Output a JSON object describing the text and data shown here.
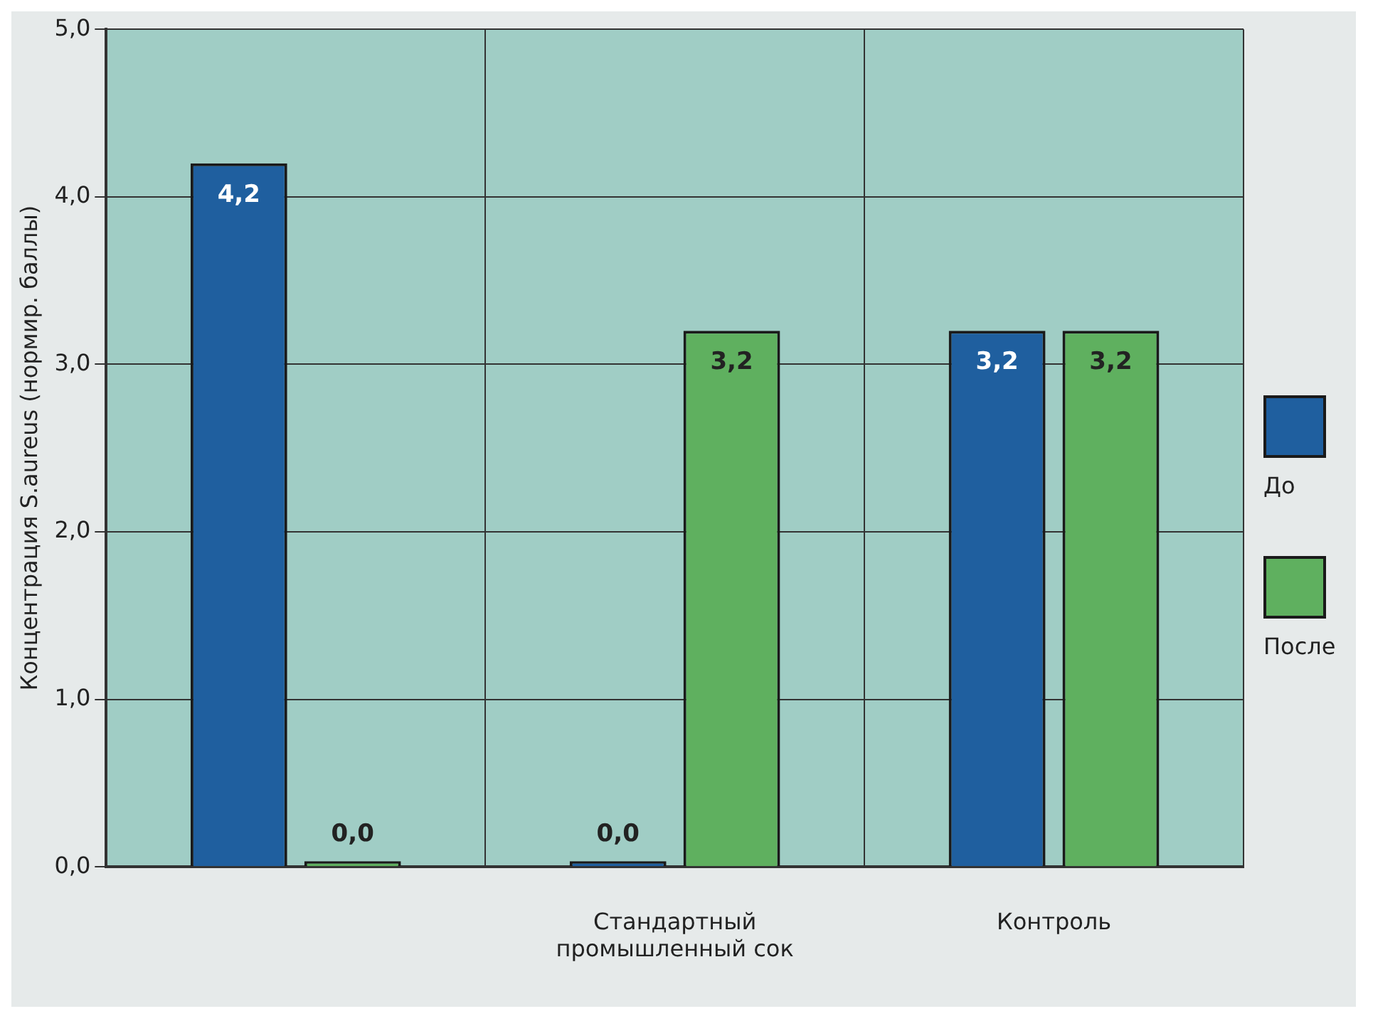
{
  "chart_data": {
    "type": "bar",
    "ylabel": "Концентрация S.aureus (нормир. баллы)",
    "categories": [
      null,
      "Стандартный промышленный сок",
      "Контроль"
    ],
    "series": [
      {
        "name": "До",
        "color": "#1f5f9f",
        "values": [
          4.2,
          0,
          3.2
        ],
        "value_labels": [
          "4,2",
          "0,0",
          "3,2"
        ]
      },
      {
        "name": "После",
        "color": "#5fb05f",
        "values": [
          0,
          3.2,
          3.2
        ],
        "value_labels": [
          "0,0",
          "3,2",
          "3,2"
        ]
      }
    ],
    "ylim": [
      0,
      5
    ],
    "yticks": [
      {
        "value": 0,
        "label": "0,0"
      },
      {
        "value": 1,
        "label": "1,0"
      },
      {
        "value": 2,
        "label": "2,0"
      },
      {
        "value": 3,
        "label": "3,0"
      },
      {
        "value": 4,
        "label": "4,0"
      },
      {
        "value": 5,
        "label": "5,0"
      }
    ],
    "grid": true,
    "legend": "right"
  }
}
